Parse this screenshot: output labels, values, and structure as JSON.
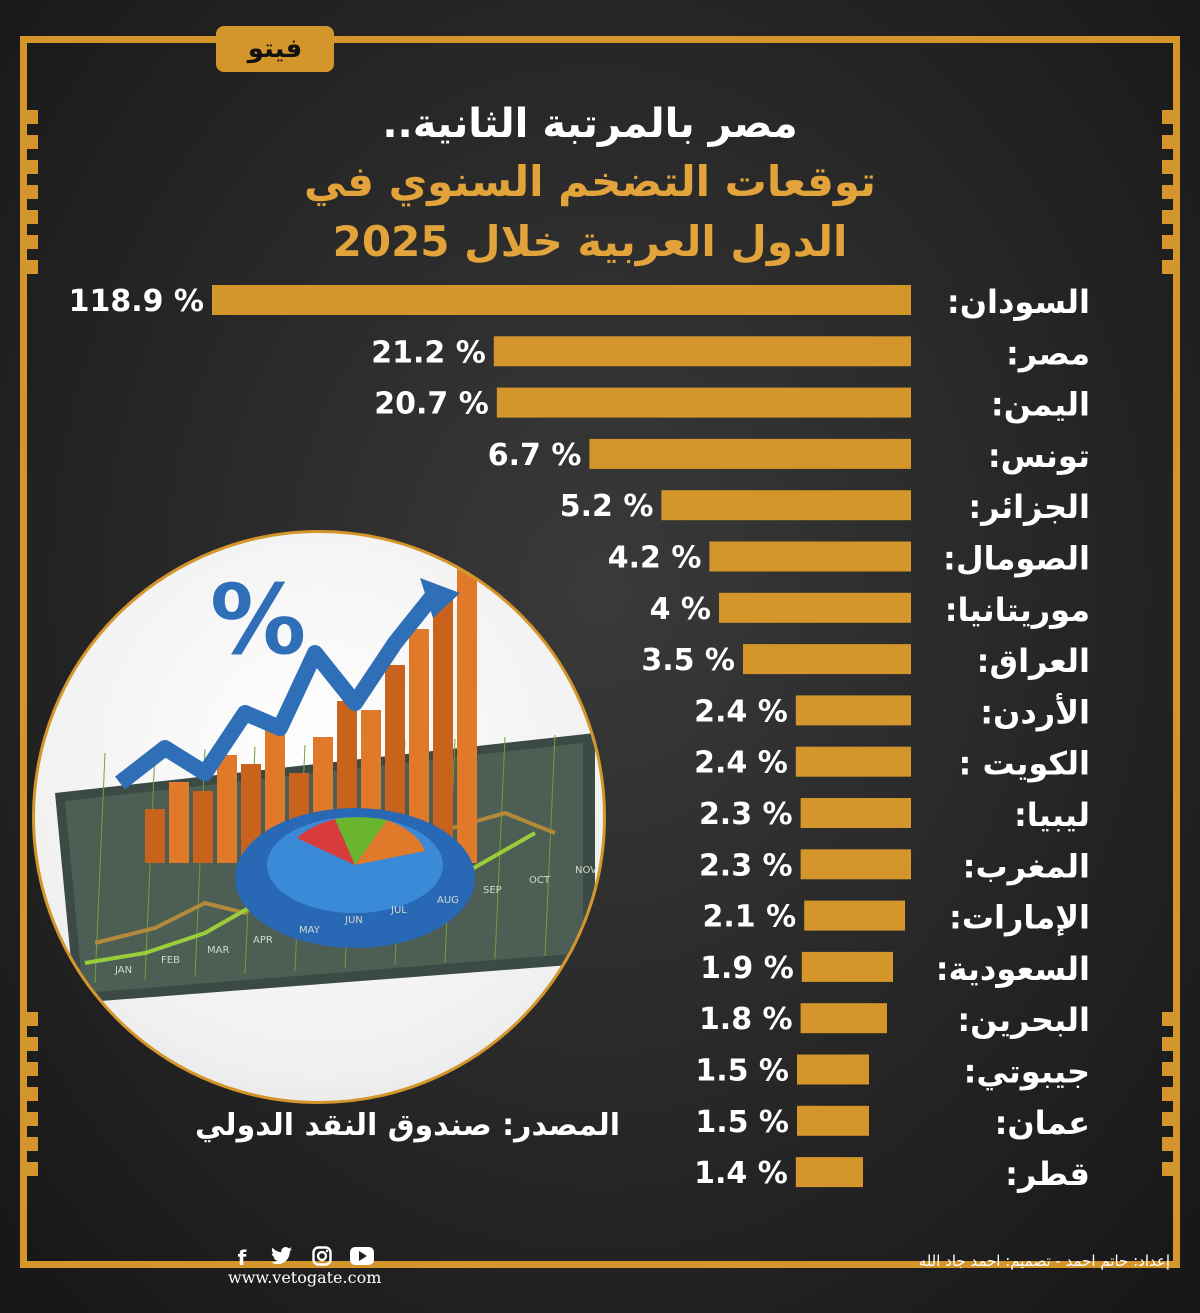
{
  "logo": {
    "text": "فيتو"
  },
  "title": {
    "line1": "مصر بالمرتبة الثانية..",
    "line2": "توقعات التضخم السنوي في",
    "line3": "الدول العربية خلال 2025"
  },
  "colors": {
    "accent": "#d4952a",
    "title_accent": "#e2a33a",
    "text": "#ffffff"
  },
  "chart_data": {
    "type": "bar",
    "orientation": "horizontal",
    "title": "مصر بالمرتبة الثانية.. توقعات التضخم السنوي في الدول العربية خلال 2025",
    "categories": [
      "السودان:",
      "مصر:",
      "اليمن:",
      "تونس:",
      "الجزائر:",
      "الصومال:",
      "موريتانيا:",
      "العراق:",
      "الأردن:",
      "الكويت :",
      "ليبيا:",
      "المغرب:",
      "الإمارات:",
      "السعودية:",
      "البحرين:",
      "جيبوتي:",
      "عمان:",
      "قطر:"
    ],
    "values": [
      118.9,
      21.2,
      20.7,
      6.7,
      5.2,
      4.2,
      4,
      3.5,
      2.4,
      2.4,
      2.3,
      2.3,
      2.1,
      1.9,
      1.8,
      1.5,
      1.5,
      1.4
    ],
    "value_labels": [
      "118.9 %",
      "21.2 %",
      "20.7 %",
      "6.7 %",
      "5.2 %",
      "4.2 %",
      "4 %",
      "3.5 %",
      "2.4 %",
      "2.4 %",
      "2.3 %",
      "2.3 %",
      "2.1 %",
      "1.9 %",
      "1.8 %",
      "1.5 %",
      "1.5 %",
      "1.4 %"
    ],
    "unit": "%",
    "bar_color": "#d4952a"
  },
  "illustration": {
    "symbol": "%",
    "months": [
      "JAN",
      "FEB",
      "MAR",
      "APR",
      "MAY",
      "JUN",
      "JUL",
      "AUG",
      "SEP",
      "OCT",
      "NOV"
    ]
  },
  "source": "المصدر: صندوق النقد الدولي",
  "footer": {
    "social_icons": [
      "facebook-icon",
      "twitter-icon",
      "instagram-icon",
      "youtube-icon"
    ],
    "url": "www.vetogate.com",
    "credits": "إعداد:  حاتم احمد -  تصميم: احمد جاد الله"
  }
}
